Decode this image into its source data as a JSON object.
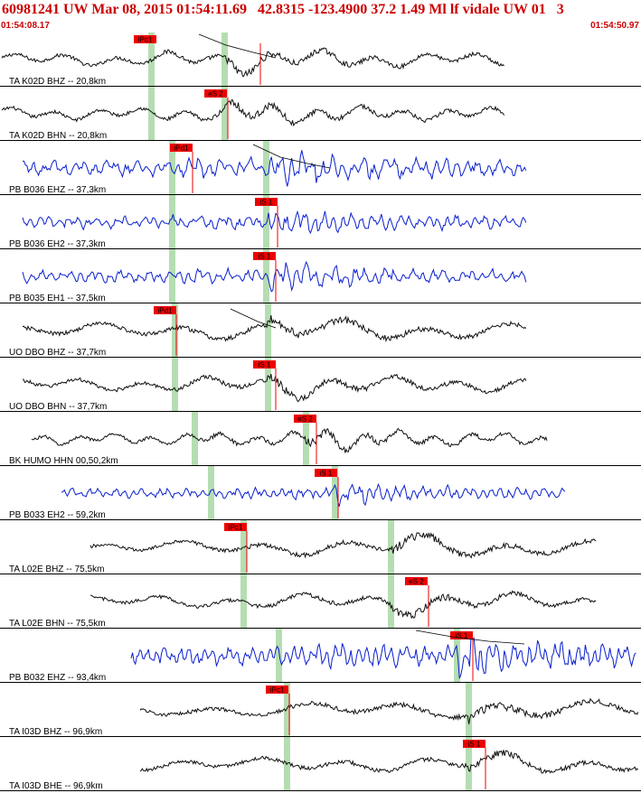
{
  "header": {
    "title": "60981241 UW Mar 08, 2015 01:54:11.69   42.8315 -123.4900 37.2 1.49 Ml lf vidale UW 01   3",
    "start_time": "01:54:08.17",
    "end_time": "01:54:50.97"
  },
  "colors": {
    "header_text": "#cc0000",
    "pick_flag": "#ee0000",
    "phase_band": "#b5ddb2",
    "trace_black": "#111111",
    "trace_blue": "#0a1fcf",
    "separator": "#000000"
  },
  "chart_data": {
    "type": "line",
    "time_window": [
      "01:54:08.17",
      "01:54:50.97"
    ],
    "channels": [
      {
        "label": "TA K02D BHZ -- 20,8km",
        "color": "black",
        "picks": [
          {
            "name": "iPc1"
          }
        ],
        "arrivals": [
          "P",
          "S"
        ]
      },
      {
        "label": "TA K02D BHN -- 20,8km",
        "color": "black",
        "picks": [
          {
            "name": "eS 2"
          }
        ],
        "arrivals": [
          "P",
          "S"
        ]
      },
      {
        "label": "PB B036 EHZ -- 37,3km",
        "color": "blue",
        "picks": [
          {
            "name": "iPd1"
          }
        ],
        "arrivals": [
          "P",
          "S"
        ]
      },
      {
        "label": "PB B036 EH2 -- 37,3km",
        "color": "blue",
        "picks": [
          {
            "name": "iS 1"
          }
        ],
        "arrivals": [
          "P",
          "S"
        ]
      },
      {
        "label": "PB B035 EH1 -- 37,5km",
        "color": "blue",
        "picks": [
          {
            "name": "iS 1"
          }
        ],
        "arrivals": [
          "P",
          "S"
        ]
      },
      {
        "label": "UO DBO BHZ -- 37,7km",
        "color": "black",
        "picks": [
          {
            "name": "iPd1"
          }
        ],
        "arrivals": [
          "P",
          "S"
        ]
      },
      {
        "label": "UO DBO BHN -- 37,7km",
        "color": "black",
        "picks": [
          {
            "name": "iS 1"
          }
        ],
        "arrivals": [
          "P",
          "S"
        ]
      },
      {
        "label": "BK HUMO HHN 00,50,2km",
        "color": "black",
        "picks": [
          {
            "name": "eS 2"
          }
        ],
        "arrivals": [
          "P",
          "S"
        ]
      },
      {
        "label": "PB B033 EH2 -- 59,2km",
        "color": "blue",
        "picks": [
          {
            "name": "iS 1"
          }
        ],
        "arrivals": [
          "P",
          "S"
        ]
      },
      {
        "label": "TA L02E BHZ -- 75,5km",
        "color": "black",
        "picks": [
          {
            "name": "iPc1"
          }
        ],
        "arrivals": [
          "P",
          "S"
        ]
      },
      {
        "label": "TA L02E BHN -- 75,5km",
        "color": "black",
        "picks": [
          {
            "name": "eS 2"
          }
        ],
        "arrivals": [
          "P",
          "S"
        ]
      },
      {
        "label": "PB B032 EHZ -- 93,4km",
        "color": "blue",
        "picks": [
          {
            "name": "iS 1"
          }
        ],
        "arrivals": [
          "P",
          "S"
        ]
      },
      {
        "label": "TA I03D BHZ -- 96,9km",
        "color": "black",
        "picks": [
          {
            "name": "iPc1"
          }
        ],
        "arrivals": [
          "P",
          "S"
        ]
      },
      {
        "label": "TA I03D BHE -- 96,9km",
        "color": "black",
        "picks": [
          {
            "name": "iS 1"
          }
        ],
        "arrivals": [
          "P",
          "S"
        ]
      }
    ]
  }
}
